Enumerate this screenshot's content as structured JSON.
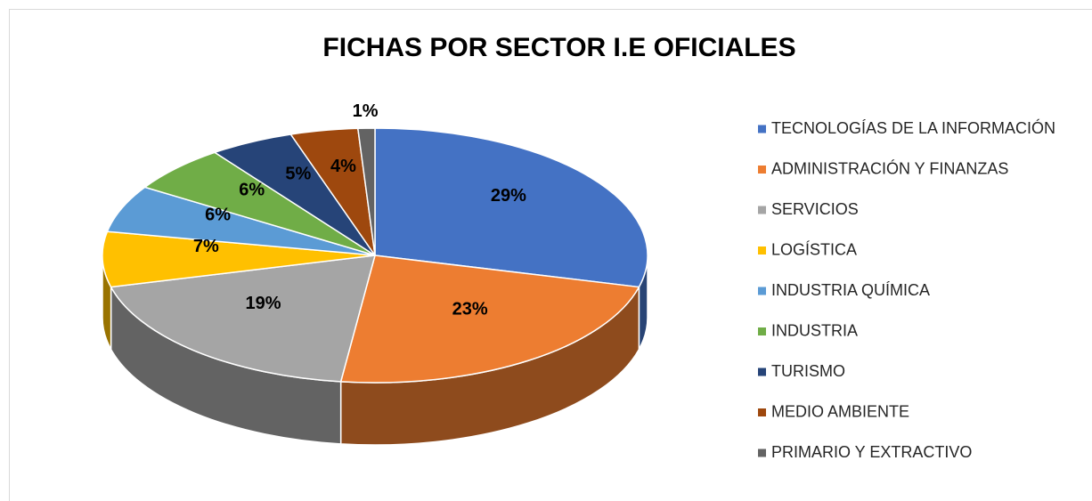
{
  "chart_data": {
    "type": "pie",
    "title": "FICHAS POR SECTOR I.E OFICIALES",
    "categories": [
      "TECNOLOGÍAS DE LA INFORMACIÓN",
      "ADMINISTRACIÓN Y FINANZAS",
      "SERVICIOS",
      "LOGÍSTICA",
      "INDUSTRIA QUÍMICA",
      "INDUSTRIA",
      "TURISMO",
      "MEDIO AMBIENTE",
      "PRIMARIO Y EXTRACTIVO"
    ],
    "values": [
      29,
      23,
      19,
      7,
      6,
      6,
      5,
      4,
      1
    ],
    "value_labels": [
      "29%",
      "23%",
      "19%",
      "7%",
      "6%",
      "6%",
      "5%",
      "4%",
      "1%"
    ],
    "colors": [
      "#4472c4",
      "#ed7d31",
      "#a5a5a5",
      "#ffc000",
      "#5b9bd5",
      "#70ad47",
      "#264478",
      "#9e480e",
      "#636363"
    ],
    "legend": "right"
  }
}
